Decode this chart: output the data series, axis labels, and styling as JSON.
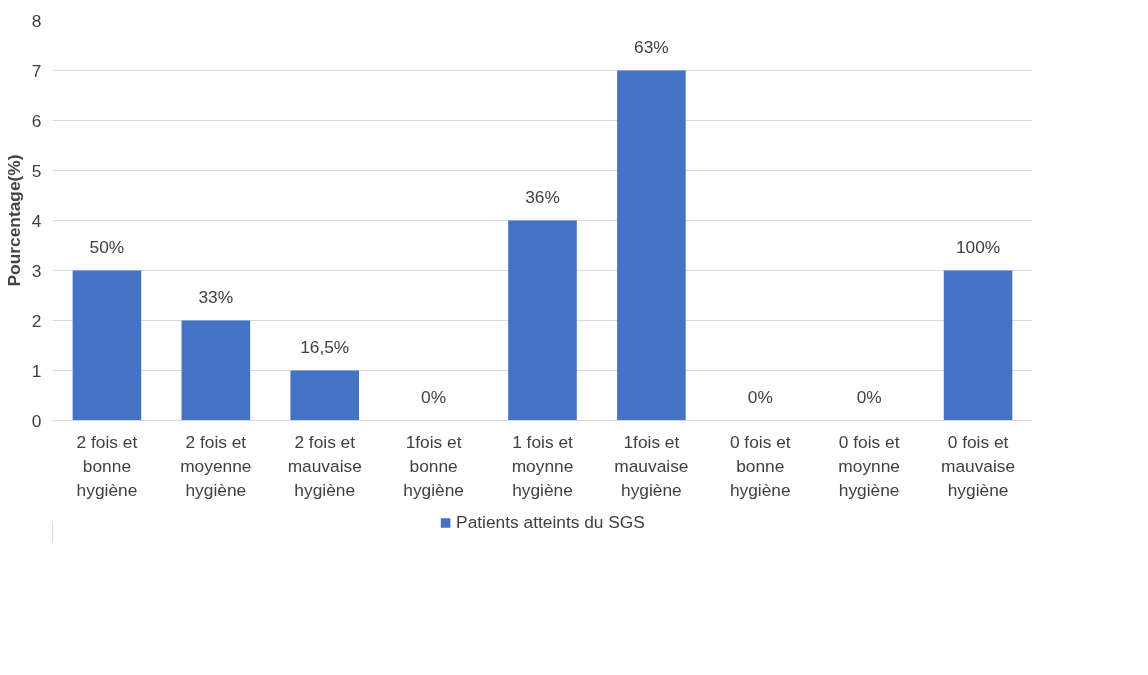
{
  "chart_data": {
    "type": "bar",
    "ylabel": "Pourcentage(%)",
    "categories": [
      "2 fois et bonne hygiène",
      "2 fois et moyenne hygiène",
      "2 fois et mauvaise hygiène",
      "1fois et bonne hygiène",
      "1 fois et moynne hygiène",
      "1fois et mauvaise hygiène",
      "0 fois et bonne hygiène",
      "0 fois et moynne hygiène",
      "0 fois et mauvaise hygiène"
    ],
    "series": [
      {
        "name": "Patients atteints du SGS",
        "color": "#4472c4",
        "values": [
          3,
          2,
          1,
          0,
          4,
          7,
          0,
          0,
          3
        ]
      }
    ],
    "annotations": [
      {
        "text": "50%",
        "x": "2 fois et bonne hygiène",
        "y": 3
      },
      {
        "text": "33%",
        "x": "2 fois et moyenne hygiène",
        "y": 2
      },
      {
        "text": "16,5%",
        "x": "2 fois et mauvaise hygiène",
        "y": 1
      },
      {
        "text": "0%",
        "x": "1fois et bonne hygiène",
        "y": 0
      },
      {
        "text": "36%",
        "x": "1 fois et moynne hygiène",
        "y": 4
      },
      {
        "text": "63%",
        "x": "1fois et mauvaise hygiène",
        "y": 7
      },
      {
        "text": "0%",
        "x": "0 fois et bonne hygiène",
        "y": 0
      },
      {
        "text": "0%",
        "x": "0 fois et moynne hygiène",
        "y": 0
      },
      {
        "text": "100%",
        "x": "0 fois et mauvaise hygiène",
        "y": 3
      }
    ],
    "ylim": [
      0,
      8
    ],
    "yticks": [
      0,
      1,
      2,
      3,
      4,
      5,
      6,
      7,
      8
    ],
    "grid": "y",
    "legend": "bottom"
  }
}
